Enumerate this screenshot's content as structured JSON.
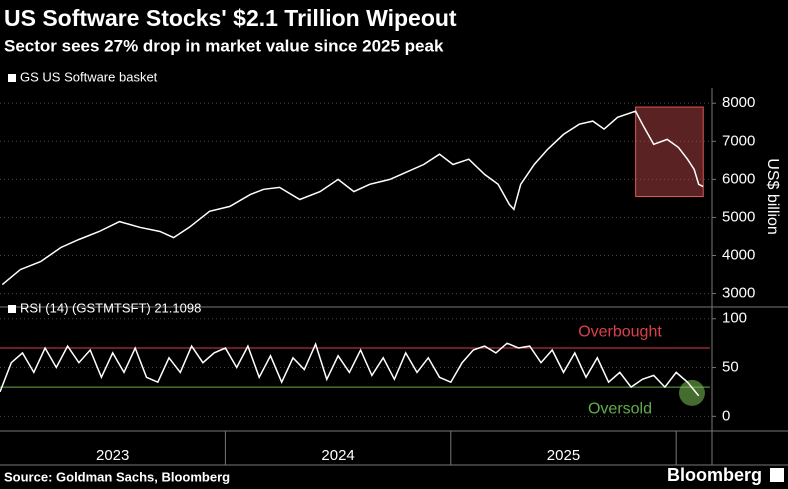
{
  "chart_data": [
    {
      "type": "line",
      "title": "US Software Stocks' $2.1 Trillion Wipeout",
      "subtitle": "Sector sees 27% drop in market value since 2025 peak",
      "y_label": "US$ billion",
      "grid": true,
      "x": [
        2023.01,
        2023.09,
        2023.18,
        2023.27,
        2023.35,
        2023.44,
        2023.53,
        2023.62,
        2023.71,
        2023.77,
        2023.84,
        2023.93,
        2024.02,
        2024.11,
        2024.17,
        2024.24,
        2024.33,
        2024.42,
        2024.5,
        2024.57,
        2024.64,
        2024.73,
        2024.81,
        2024.88,
        2024.95,
        2025.01,
        2025.08,
        2025.15,
        2025.21,
        2025.26,
        2025.28,
        2025.31,
        2025.37,
        2025.43,
        2025.5,
        2025.57,
        2025.63,
        2025.68,
        2025.74,
        2025.82,
        2025.85,
        2025.9,
        2025.96,
        2026.01,
        2026.05,
        2026.08,
        2026.1,
        2026.12
      ],
      "series": [
        {
          "name": "GS US Software basket",
          "color": "#ffffff",
          "values": [
            3237,
            3630,
            3840,
            4210,
            4420,
            4630,
            4890,
            4740,
            4630,
            4470,
            4740,
            5160,
            5290,
            5600,
            5740,
            5790,
            5470,
            5680,
            6000,
            5680,
            5870,
            6000,
            6210,
            6390,
            6660,
            6390,
            6530,
            6130,
            5870,
            5340,
            5210,
            5870,
            6390,
            6790,
            7180,
            7450,
            7530,
            7320,
            7630,
            7790,
            7450,
            6920,
            7050,
            6840,
            6530,
            6260,
            5870,
            5810
          ]
        }
      ],
      "xlim": [
        2023,
        2026.15
      ],
      "ylim": [
        2700,
        8400
      ],
      "yticks": [
        3000,
        4000,
        5000,
        6000,
        7000,
        8000
      ],
      "highlight_box": {
        "x": [
          2025.82,
          2026.12
        ],
        "y": [
          5550,
          7900
        ],
        "color": "#e05555"
      }
    },
    {
      "type": "line",
      "title": "RSI (14) (GSTMTSFT) 21.1098",
      "grid": true,
      "x": [
        2023.0,
        2023.05,
        2023.1,
        2023.15,
        2023.2,
        2023.25,
        2023.3,
        2023.35,
        2023.4,
        2023.45,
        2023.5,
        2023.55,
        2023.6,
        2023.65,
        2023.7,
        2023.75,
        2023.8,
        2023.85,
        2023.9,
        2023.95,
        2024.0,
        2024.05,
        2024.1,
        2024.15,
        2024.2,
        2024.25,
        2024.3,
        2024.35,
        2024.4,
        2024.45,
        2024.5,
        2024.55,
        2024.6,
        2024.65,
        2024.7,
        2024.75,
        2024.8,
        2024.85,
        2024.9,
        2024.95,
        2025.0,
        2025.05,
        2025.1,
        2025.15,
        2025.2,
        2025.25,
        2025.3,
        2025.35,
        2025.4,
        2025.45,
        2025.5,
        2025.55,
        2025.6,
        2025.65,
        2025.7,
        2025.75,
        2025.8,
        2025.85,
        2025.9,
        2025.95,
        2026.0,
        2026.05,
        2026.1
      ],
      "series": [
        {
          "name": "RSI (14)",
          "color": "#ffffff",
          "values": [
            25,
            55,
            65,
            45,
            70,
            50,
            72,
            55,
            68,
            40,
            65,
            45,
            70,
            40,
            35,
            60,
            45,
            72,
            55,
            65,
            70,
            50,
            72,
            40,
            62,
            35,
            60,
            48,
            74,
            38,
            62,
            45,
            68,
            42,
            60,
            38,
            65,
            45,
            60,
            40,
            35,
            55,
            68,
            72,
            65,
            75,
            70,
            72,
            55,
            68,
            45,
            65,
            40,
            60,
            35,
            45,
            30,
            38,
            42,
            30,
            45,
            35,
            21
          ]
        }
      ],
      "xlim": [
        2023,
        2026.15
      ],
      "ylim": [
        -14,
        110
      ],
      "yticks": [
        0,
        50,
        100
      ],
      "levels": [
        {
          "value": 70,
          "label": "Overbought",
          "color": "#d9414a"
        },
        {
          "value": 30,
          "label": "Oversold",
          "color": "#5fae4a"
        }
      ],
      "highlight_circle": {
        "x": 2026.07,
        "y": 24,
        "color": "#7fc255"
      },
      "xticks": [
        {
          "value": 2023.5,
          "label": "2023"
        },
        {
          "value": 2024.5,
          "label": "2024"
        },
        {
          "value": 2025.5,
          "label": "2025"
        }
      ],
      "source": "Source: Goldman Sachs, Bloomberg",
      "brand": "Bloomberg"
    }
  ]
}
